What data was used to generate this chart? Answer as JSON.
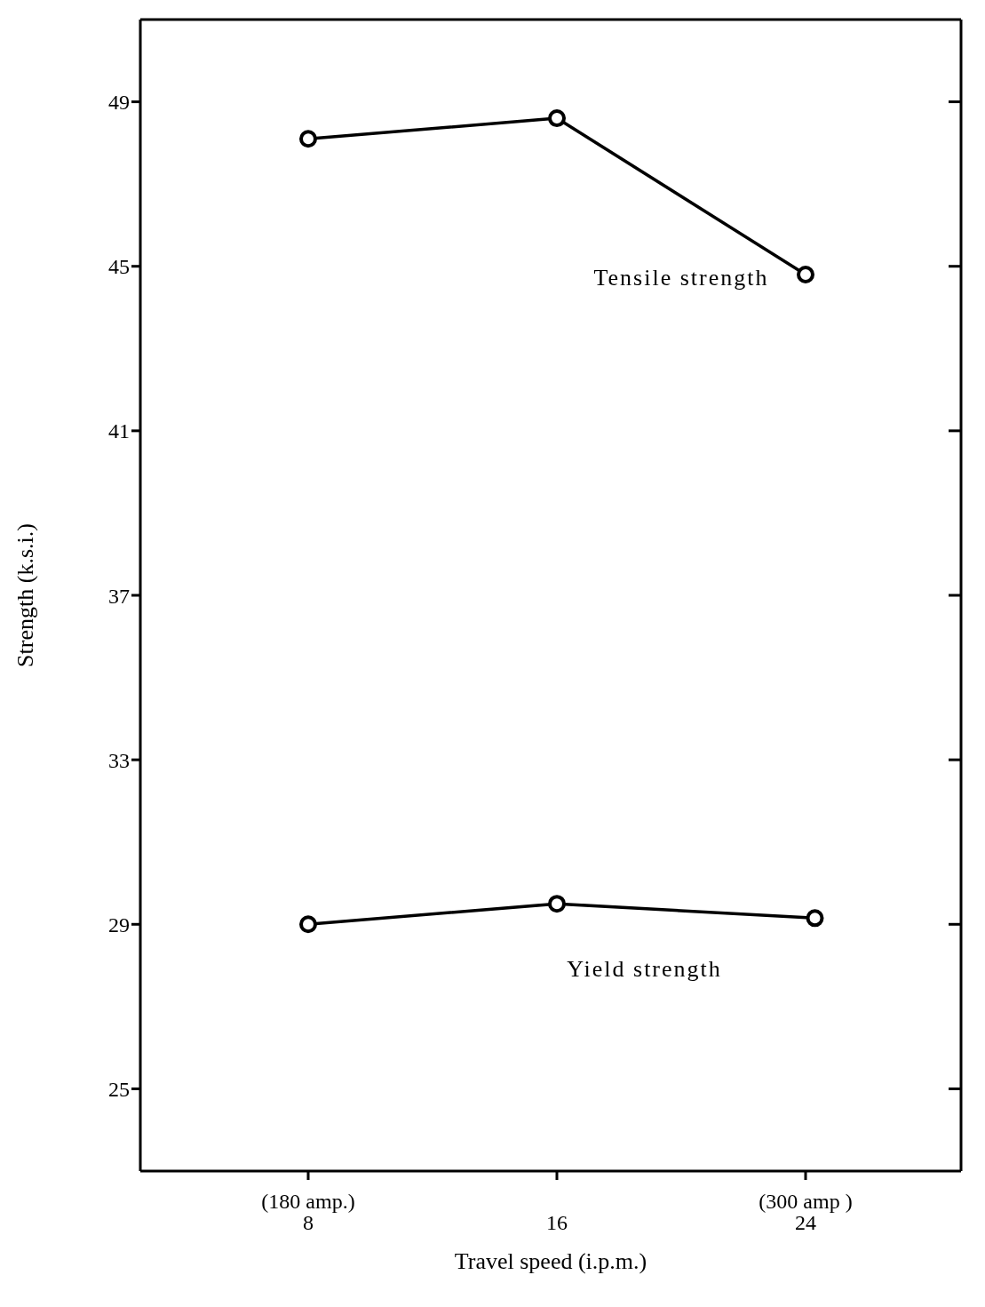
{
  "chart_data": {
    "type": "line",
    "xlabel": "Travel speed (i.p.m.)",
    "ylabel": "Strength (k.s.i.)",
    "xlim": [
      2.6,
      29
    ],
    "xticks": [
      8,
      16,
      24
    ],
    "annotations": [
      "(180 amp.)",
      "(300 amp )"
    ],
    "ylim": [
      23,
      51
    ],
    "yticks": [
      25,
      29,
      33,
      37,
      41,
      45,
      49
    ],
    "series": [
      {
        "name": "Tensile strength",
        "color": "#000000",
        "x": [
          8,
          16,
          24
        ],
        "values": [
          48.1,
          48.6,
          44.8
        ]
      },
      {
        "name": "Yield strength",
        "color": "#000000",
        "x": [
          8,
          16,
          24.3
        ],
        "values": [
          29.0,
          29.5,
          29.15
        ]
      }
    ],
    "marker": "circle",
    "line_style": "solid",
    "grid": false,
    "legend": false
  }
}
